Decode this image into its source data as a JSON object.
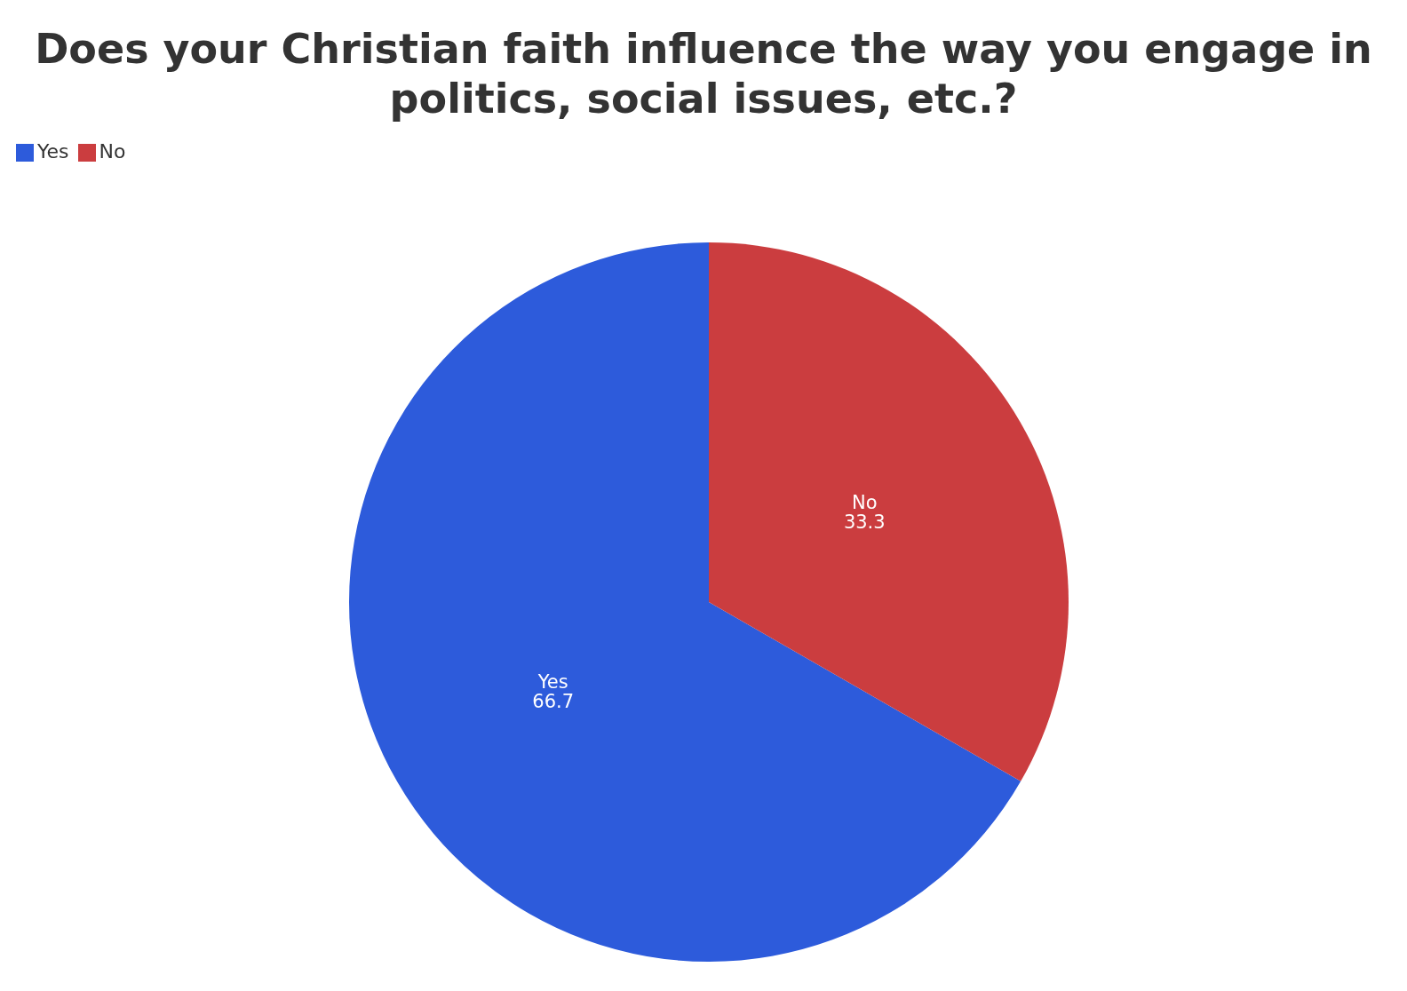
{
  "chart_data": {
    "type": "pie",
    "title": "Does your Christian faith influence the way you engage in politics, social issues, etc.?",
    "categories": [
      "Yes",
      "No"
    ],
    "values": [
      66.7,
      33.3
    ],
    "colors": [
      "#2d5bdb",
      "#cb3d3f"
    ],
    "data_labels": true,
    "legend": "top left"
  }
}
